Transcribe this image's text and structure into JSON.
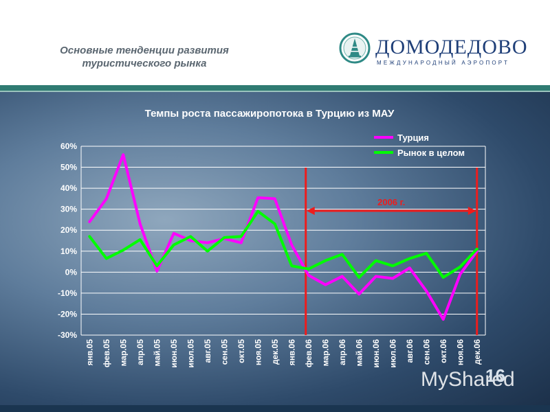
{
  "header": {
    "subtitle_line1": "Основные тенденции развития",
    "subtitle_line2": "туристического рынка",
    "logo_name": "ДОМОДЕДОВО",
    "logo_tagline": "МЕЖДУНАРОДНЫЙ АЭРОПОРТ"
  },
  "colors": {
    "turkey": "#ff00ff",
    "market": "#00ff00",
    "period_marker": "#ee1c1c",
    "accent_band": "#2f7b72"
  },
  "chart_data": {
    "type": "line",
    "title": "Темпы роста пассажиропотока в Турцию из МАУ",
    "categories": [
      "янв.05",
      "фев.05",
      "мар.05",
      "апр.05",
      "май.05",
      "июн.05",
      "июл.05",
      "авг.05",
      "сен.05",
      "окт.05",
      "ноя.05",
      "дек.05",
      "янв.06",
      "фев.06",
      "мар.06",
      "апр.06",
      "май.06",
      "июн.06",
      "июл.06",
      "авг.06",
      "сен.06",
      "окт.06",
      "ноя.06",
      "дек.06"
    ],
    "series": [
      {
        "name": "Турция",
        "color": "#ff00ff",
        "values": [
          24,
          35,
          56,
          23,
          0.5,
          18.5,
          15,
          14,
          16,
          14,
          35.5,
          35,
          13,
          -1.5,
          -6,
          -2,
          -10.5,
          -2,
          -3,
          2,
          -9,
          -22.5,
          -1,
          10
        ]
      },
      {
        "name": "Рынок в целом",
        "color": "#00ff00",
        "values": [
          17,
          6.5,
          10.5,
          15.5,
          3,
          13,
          17,
          10,
          16.5,
          17,
          29,
          23,
          3,
          1.5,
          5.5,
          8.5,
          -2.5,
          5.5,
          3,
          6.5,
          9,
          -2.5,
          2.5,
          11
        ]
      }
    ],
    "ylim": [
      -30,
      60
    ],
    "yticks": [
      -30,
      -20,
      -10,
      0,
      10,
      20,
      30,
      40,
      50,
      60
    ],
    "ytick_labels": [
      "-30%",
      "-20%",
      "-10%",
      "0%",
      "10%",
      "20%",
      "30%",
      "40%",
      "50%",
      "60%"
    ],
    "grid": true,
    "legend": "top-right",
    "annotation": {
      "text": "2006 г.",
      "from": "фев.06",
      "to": "дек.06"
    }
  },
  "footer": {
    "page_number": "16",
    "watermark": "MyShared"
  }
}
